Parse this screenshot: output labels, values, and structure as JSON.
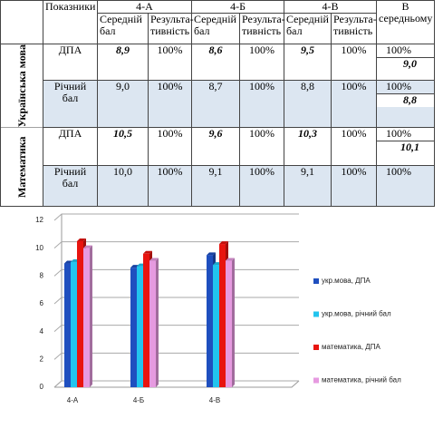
{
  "table": {
    "header": {
      "corner": "",
      "indicator": "Показники",
      "classes": [
        "4-А",
        "4-Б",
        "4-В"
      ],
      "average": "В середньому",
      "sub": [
        "Середній бал",
        "Результа-тивність",
        "Середній бал",
        "Результа-тивність",
        "Середній бал",
        "Результа-тивність"
      ]
    },
    "groups": [
      {
        "subject": "Українська мова",
        "rows": [
          {
            "label": "ДПА",
            "cells": [
              "8,9",
              "100%",
              "8,6",
              "100%",
              "9,5",
              "100%"
            ],
            "average": [
              "100%",
              "9,0"
            ]
          },
          {
            "label": "Річний бал",
            "cells": [
              "9,0",
              "100%",
              "8,7",
              "100%",
              "8,8",
              "100%"
            ],
            "average": [
              "100%",
              "8,8"
            ]
          }
        ]
      },
      {
        "subject": "Математика",
        "rows": [
          {
            "label": "ДПА",
            "cells": [
              "10,5",
              "100%",
              "9,6",
              "100%",
              "10,3",
              "100%"
            ],
            "average": [
              "100%",
              "10,1"
            ]
          },
          {
            "label": "Річний бал",
            "cells": [
              "10,0",
              "100%",
              "9,1",
              "100%",
              "9,1",
              "100%"
            ],
            "average": [
              "100%"
            ]
          }
        ]
      }
    ]
  },
  "chart_data": {
    "type": "bar3d",
    "categories": [
      "4-А",
      "4-Б",
      "4-В"
    ],
    "series": [
      {
        "name": "укр.мова, ДПА",
        "color": "#1f4fbf",
        "values": [
          8.9,
          8.6,
          9.5
        ]
      },
      {
        "name": "укр.мова, річний бал",
        "color": "#22c4ee",
        "values": [
          9.0,
          8.7,
          8.8
        ]
      },
      {
        "name": "математика, ДПА",
        "color": "#e8140f",
        "values": [
          10.5,
          9.6,
          10.3
        ]
      },
      {
        "name": "математика, річний бал",
        "color": "#e69ae0",
        "values": [
          10.0,
          9.1,
          9.1
        ]
      }
    ],
    "ylim": [
      0,
      12
    ],
    "yticks": [
      0,
      2,
      4,
      6,
      8,
      10,
      12
    ],
    "grid": true,
    "legend": "right"
  }
}
